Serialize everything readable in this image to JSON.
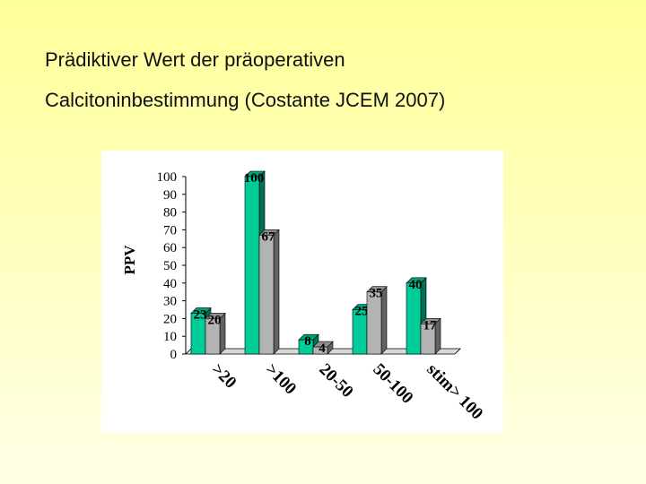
{
  "chart_data": {
    "type": "bar3d",
    "title": [
      "Prädiktiver Wert der präoperativen",
      "Calcitoninbestimmung (Costante JCEM 2007)"
    ],
    "y_label": "PPV",
    "categories": [
      ">20",
      ">100",
      "20-50",
      "50-100",
      "stim> 100"
    ],
    "series": [
      {
        "color": "#00cc99",
        "values": [
          23,
          100,
          8,
          25,
          40
        ]
      },
      {
        "color": "#b3b3b3",
        "values": [
          20,
          67,
          4,
          35,
          17
        ]
      }
    ],
    "ylim": [
      0,
      100
    ],
    "yticks": [
      0,
      10,
      20,
      30,
      40,
      50,
      60,
      70,
      80,
      90,
      100
    ]
  }
}
